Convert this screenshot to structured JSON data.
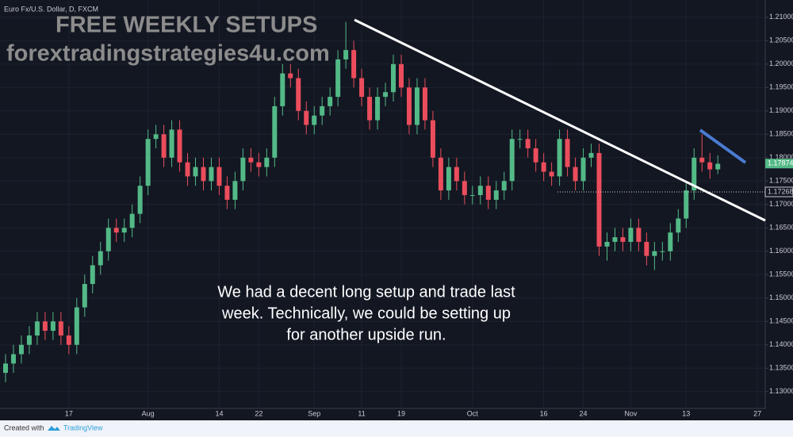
{
  "chart_data": {
    "type": "candlestick",
    "header": "Euro Fx/U.S. Dollar, D, FXCM",
    "watermark": [
      "FREE WEEKLY SETUPS",
      "forextradingstrategies4u.com"
    ],
    "annotation": [
      "We had a decent long setup and trade last",
      "week.  Technically, we could be setting up",
      "for another upside run."
    ],
    "footer": [
      "Created with",
      "TradingView"
    ],
    "up_color": "#53b987",
    "down_color": "#eb4d5c",
    "grid": true,
    "categories": [
      null,
      null,
      null,
      null,
      null,
      null,
      null,
      null,
      "17",
      null,
      null,
      null,
      null,
      null,
      null,
      null,
      null,
      null,
      "Aug",
      null,
      null,
      null,
      null,
      null,
      null,
      null,
      null,
      "14",
      null,
      null,
      null,
      null,
      "22",
      null,
      null,
      null,
      null,
      null,
      null,
      "Sep",
      null,
      null,
      null,
      null,
      null,
      "11",
      null,
      null,
      null,
      null,
      "19",
      null,
      null,
      null,
      null,
      null,
      null,
      null,
      null,
      "Oct",
      null,
      null,
      null,
      null,
      null,
      null,
      null,
      null,
      "16",
      null,
      null,
      null,
      null,
      "24",
      null,
      null,
      null,
      null,
      null,
      "Nov",
      null,
      null,
      null,
      null,
      null,
      null,
      "13",
      null,
      null,
      null,
      null,
      null,
      null,
      null,
      null,
      "27"
    ],
    "open": [
      1.134,
      1.136,
      1.138,
      1.14,
      1.142,
      1.145,
      1.143,
      1.145,
      1.142,
      1.14,
      1.148,
      1.153,
      1.157,
      1.16,
      1.165,
      1.164,
      1.165,
      1.168,
      1.174,
      1.184,
      1.185,
      1.18,
      1.186,
      1.179,
      1.176,
      1.178,
      1.175,
      1.178,
      1.174,
      1.171,
      1.175,
      1.18,
      1.179,
      1.178,
      1.18,
      1.191,
      1.198,
      1.197,
      1.19,
      1.187,
      1.189,
      1.191,
      1.193,
      1.201,
      1.203,
      1.197,
      1.193,
      1.188,
      1.193,
      1.194,
      1.2,
      1.195,
      1.187,
      1.195,
      1.188,
      1.18,
      1.173,
      1.178,
      1.175,
      1.172,
      1.172,
      1.174,
      1.171,
      1.173,
      1.175,
      1.184,
      1.184,
      1.182,
      1.179,
      1.177,
      1.176,
      1.184,
      1.178,
      1.175,
      1.18,
      1.181,
      1.161,
      1.162,
      1.163,
      1.162,
      1.165,
      1.162,
      1.159,
      1.16,
      1.16,
      1.164,
      1.167,
      1.173,
      1.18,
      1.179,
      1.1775,
      null,
      null,
      null,
      null,
      null
    ],
    "high": [
      1.138,
      1.14,
      1.142,
      1.144,
      1.147,
      1.147,
      1.147,
      1.147,
      1.144,
      1.15,
      1.155,
      1.159,
      1.162,
      1.167,
      1.167,
      1.167,
      1.17,
      1.176,
      1.186,
      1.187,
      1.187,
      1.188,
      1.188,
      1.181,
      1.18,
      1.18,
      1.18,
      1.18,
      1.176,
      1.177,
      1.182,
      1.182,
      1.181,
      1.182,
      1.193,
      1.2,
      1.2,
      1.199,
      1.192,
      1.191,
      1.193,
      1.195,
      1.203,
      1.209,
      1.205,
      1.199,
      1.195,
      1.195,
      1.196,
      1.202,
      1.202,
      1.197,
      1.197,
      1.197,
      1.19,
      1.182,
      1.18,
      1.18,
      1.177,
      1.174,
      1.176,
      1.176,
      1.175,
      1.177,
      1.186,
      1.186,
      1.186,
      1.184,
      1.181,
      1.179,
      1.186,
      1.186,
      1.18,
      1.182,
      1.183,
      1.183,
      1.164,
      1.165,
      1.165,
      1.167,
      1.167,
      1.164,
      1.162,
      1.162,
      1.166,
      1.169,
      1.175,
      1.182,
      1.185,
      1.181,
      1.1805,
      null,
      null,
      null,
      null,
      null
    ],
    "low": [
      1.132,
      1.134,
      1.136,
      1.138,
      1.14,
      1.141,
      1.141,
      1.14,
      1.138,
      1.138,
      1.146,
      1.151,
      1.155,
      1.158,
      1.162,
      1.162,
      1.163,
      1.166,
      1.172,
      1.182,
      1.178,
      1.178,
      1.177,
      1.174,
      1.174,
      1.173,
      1.173,
      1.172,
      1.169,
      1.169,
      1.173,
      1.177,
      1.176,
      1.176,
      1.178,
      1.189,
      1.195,
      1.188,
      1.185,
      1.185,
      1.187,
      1.189,
      1.191,
      1.199,
      1.195,
      1.191,
      1.186,
      1.186,
      1.191,
      1.192,
      1.193,
      1.185,
      1.185,
      1.186,
      1.178,
      1.171,
      1.171,
      1.173,
      1.17,
      1.17,
      1.17,
      1.169,
      1.169,
      1.171,
      1.173,
      1.182,
      1.18,
      1.177,
      1.175,
      1.174,
      1.174,
      1.176,
      1.173,
      1.173,
      1.178,
      1.159,
      1.158,
      1.16,
      1.16,
      1.16,
      1.16,
      1.157,
      1.156,
      1.158,
      1.158,
      1.162,
      1.165,
      1.171,
      1.177,
      1.1755,
      1.1765,
      null,
      null,
      null,
      null,
      null
    ],
    "close": [
      1.136,
      1.138,
      1.14,
      1.142,
      1.145,
      1.143,
      1.145,
      1.142,
      1.14,
      1.148,
      1.153,
      1.157,
      1.16,
      1.165,
      1.164,
      1.165,
      1.168,
      1.174,
      1.184,
      1.185,
      1.18,
      1.186,
      1.179,
      1.176,
      1.178,
      1.175,
      1.178,
      1.174,
      1.171,
      1.175,
      1.18,
      1.179,
      1.178,
      1.18,
      1.191,
      1.198,
      1.197,
      1.19,
      1.187,
      1.189,
      1.191,
      1.193,
      1.201,
      1.203,
      1.197,
      1.193,
      1.188,
      1.193,
      1.194,
      1.2,
      1.195,
      1.187,
      1.195,
      1.188,
      1.18,
      1.173,
      1.178,
      1.175,
      1.172,
      1.172,
      1.174,
      1.171,
      1.173,
      1.175,
      1.184,
      1.184,
      1.182,
      1.179,
      1.177,
      1.176,
      1.184,
      1.178,
      1.175,
      1.18,
      1.181,
      1.161,
      1.162,
      1.163,
      1.162,
      1.165,
      1.162,
      1.159,
      1.16,
      1.16,
      1.164,
      1.167,
      1.173,
      1.18,
      1.179,
      1.1775,
      1.1787,
      null,
      null,
      null,
      null,
      null
    ],
    "ylim": [
      1.1264,
      1.2137
    ],
    "yticks": [
      {
        "value": 1.13,
        "label": "1.13000"
      },
      {
        "value": 1.135,
        "label": "1.13500"
      },
      {
        "value": 1.14,
        "label": "1.14000"
      },
      {
        "value": 1.145,
        "label": "1.14500"
      },
      {
        "value": 1.15,
        "label": "1.15000"
      },
      {
        "value": 1.155,
        "label": "1.15500"
      },
      {
        "value": 1.16,
        "label": "1.16000"
      },
      {
        "value": 1.165,
        "label": "1.16500"
      },
      {
        "value": 1.17,
        "label": "1.17000"
      },
      {
        "value": 1.175,
        "label": "1.17500"
      },
      {
        "value": 1.18,
        "label": "1.18000"
      },
      {
        "value": 1.185,
        "label": "1.18500"
      },
      {
        "value": 1.19,
        "label": "1.19000"
      },
      {
        "value": 1.195,
        "label": "1.19500"
      },
      {
        "value": 1.2,
        "label": "1.20000"
      },
      {
        "value": 1.205,
        "label": "1.20500"
      },
      {
        "value": 1.21,
        "label": "1.21000"
      }
    ],
    "last_price": {
      "value": 1.17874,
      "label": "1.17874"
    },
    "level": {
      "value": 1.17268,
      "label": "1.17268"
    }
  }
}
